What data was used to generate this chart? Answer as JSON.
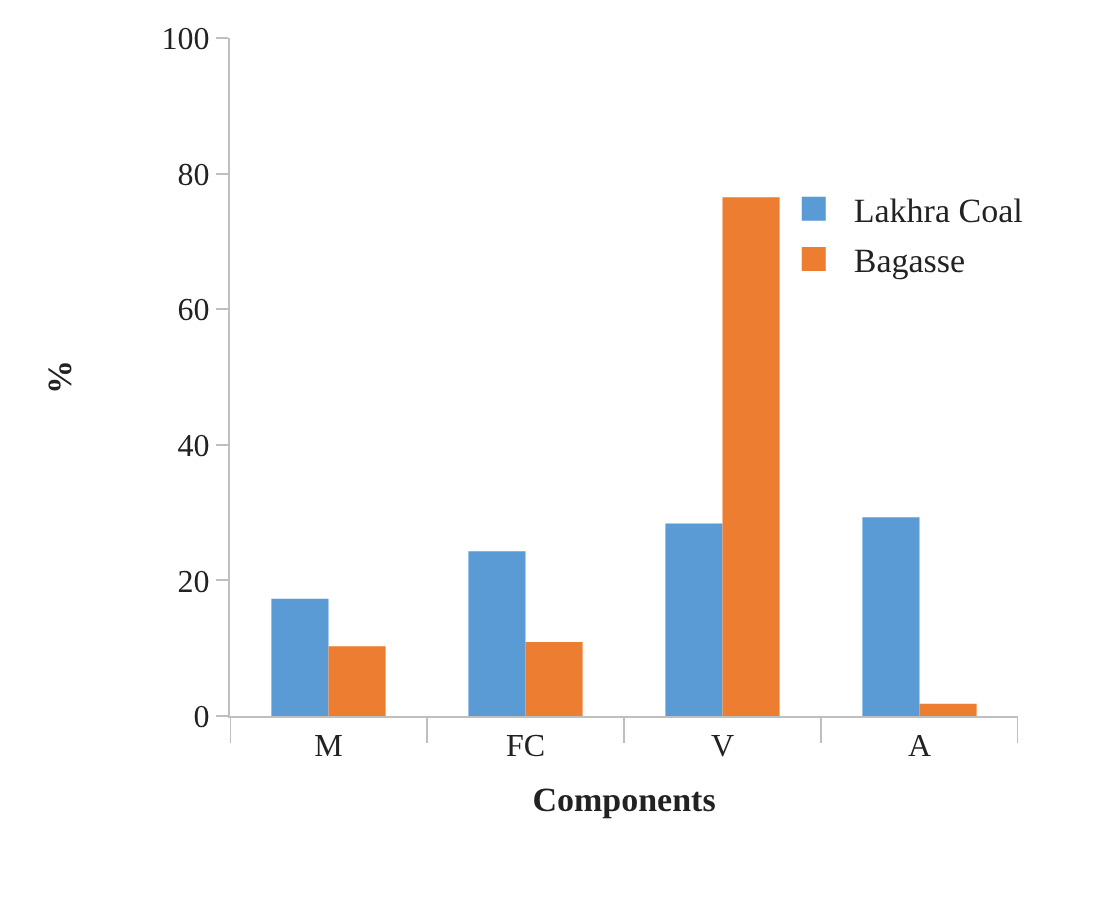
{
  "chart_data": {
    "type": "bar",
    "categories": [
      "M",
      "FC",
      "V",
      "A"
    ],
    "series": [
      {
        "name": "Lakhra Coal",
        "color": "#5b9bd5",
        "values": [
          17.3,
          24.3,
          28.4,
          29.3
        ]
      },
      {
        "name": "Bagasse",
        "color": "#ed7d31",
        "values": [
          10.3,
          10.9,
          76.5,
          1.8
        ]
      }
    ],
    "xlabel": "Components",
    "ylabel": "%",
    "ylim": [
      0,
      100
    ],
    "yticks": [
      0,
      20,
      40,
      60,
      80,
      100
    ],
    "legend": "top right"
  }
}
